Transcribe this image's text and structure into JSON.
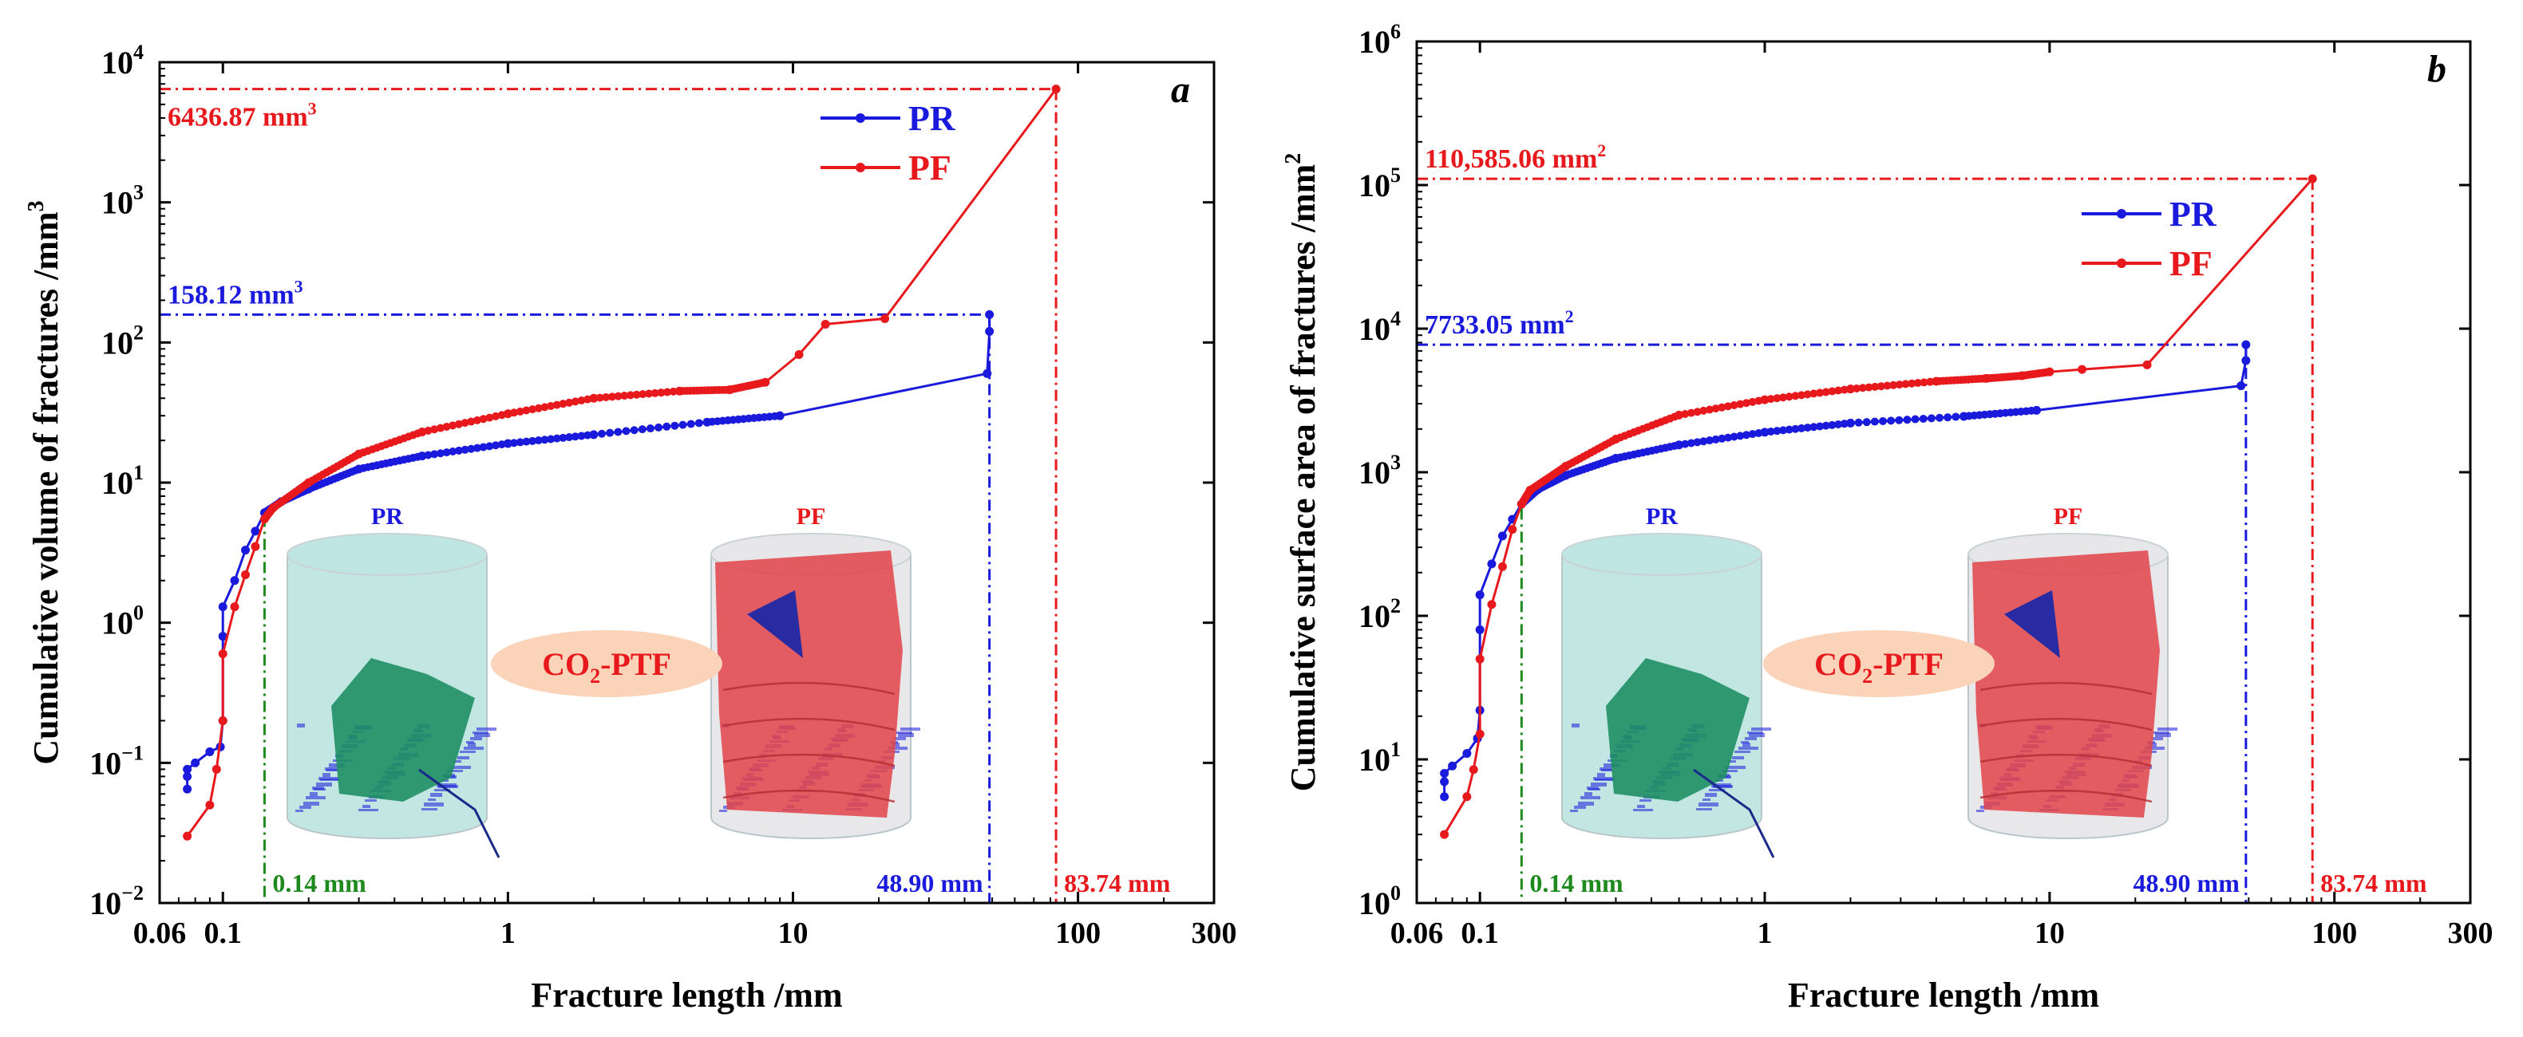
{
  "colors": {
    "pr": "#1a1adc",
    "pf": "#e8191c",
    "green": "#1e8a1e",
    "axis": "#000000",
    "callout": "#fbd3b8",
    "cyl_pr": "#bfe6e2",
    "pr_fracture": "#1f8f64",
    "pf_fracture": "#e0484d",
    "cyl_pf": "#e7e7ea"
  },
  "chart_data": [
    {
      "panel": "a",
      "type": "line",
      "xscale": "log",
      "yscale": "log",
      "xlim": [
        0.06,
        300
      ],
      "ylim": [
        0.01,
        10000
      ],
      "xticks": [
        0.06,
        0.1,
        1,
        10,
        100,
        300
      ],
      "xtick_labels": [
        "0.06",
        "0.1",
        "1",
        "10",
        "100",
        "300"
      ],
      "yticks": [
        0.01,
        0.1,
        1,
        10,
        100,
        1000,
        10000
      ],
      "ytick_mant": [
        "10",
        "10",
        "10",
        "10",
        "10",
        "10",
        "10"
      ],
      "ytick_exp": [
        "−2",
        "−1",
        "0",
        "1",
        "2",
        "3",
        "4"
      ],
      "xlabel": "Fracture length /mm",
      "ylabel_main": "Cumulative volume of fractures /mm",
      "ylabel_sup": "3",
      "panel_label": "a",
      "legend": [
        "PR",
        "PF"
      ],
      "series": [
        {
          "name": "PR",
          "x": [
            0.075,
            0.075,
            0.075,
            0.08,
            0.09,
            0.098,
            0.1,
            0.1,
            0.1,
            0.11,
            0.12,
            0.13,
            0.14,
            0.16,
            0.2,
            0.3,
            0.5,
            1,
            2,
            5,
            9,
            48,
            48.9,
            48.9
          ],
          "y": [
            0.065,
            0.08,
            0.09,
            0.1,
            0.12,
            0.13,
            0.2,
            0.8,
            1.3,
            2,
            3.3,
            4.5,
            6.1,
            7.3,
            9,
            12.5,
            15.5,
            19,
            22,
            27,
            30,
            60,
            120,
            158.12
          ]
        },
        {
          "name": "PF",
          "x": [
            0.075,
            0.09,
            0.095,
            0.1,
            0.1,
            0.11,
            0.12,
            0.13,
            0.14,
            0.15,
            0.2,
            0.3,
            0.5,
            1,
            2,
            4,
            6,
            8,
            10.5,
            13,
            21,
            83.74
          ],
          "y": [
            0.03,
            0.05,
            0.09,
            0.2,
            0.6,
            1.3,
            2.2,
            3.5,
            5.5,
            6.6,
            10,
            16,
            23,
            31,
            40,
            45,
            46,
            52,
            82,
            135,
            148,
            6436.87
          ]
        }
      ],
      "annotations": {
        "pf_max_label": "6436.87 mm",
        "pf_max_sup": "3",
        "pf_max_value": 6436.87,
        "pr_max_label": "158.12 mm",
        "pr_max_sup": "3",
        "pr_max_value": 158.12,
        "x1_label": "0.14 mm",
        "x1_value": 0.14,
        "x2_label": "48.90 mm",
        "x2_value": 48.9,
        "x3_label": "83.74 mm",
        "x3_value": 83.74,
        "callout": "CO",
        "callout_sub": "2",
        "callout_rest": "-PTF",
        "img_pr": "PR",
        "img_pf": "PF"
      }
    },
    {
      "panel": "b",
      "type": "line",
      "xscale": "log",
      "yscale": "log",
      "xlim": [
        0.06,
        300
      ],
      "ylim": [
        1,
        1000000
      ],
      "xticks": [
        0.06,
        0.1,
        1,
        10,
        100,
        300
      ],
      "xtick_labels": [
        "0.06",
        "0.1",
        "1",
        "10",
        "100",
        "300"
      ],
      "yticks": [
        1,
        10,
        100,
        1000,
        10000,
        100000,
        1000000
      ],
      "ytick_mant": [
        "10",
        "10",
        "10",
        "10",
        "10",
        "10",
        "10"
      ],
      "ytick_exp": [
        "0",
        "1",
        "2",
        "3",
        "4",
        "5",
        "6"
      ],
      "xlabel": "Fracture length /mm",
      "ylabel_main": "Cumulative surface area of fractures /mm",
      "ylabel_sup": "2",
      "panel_label": "b",
      "legend": [
        "PR",
        "PF"
      ],
      "series": [
        {
          "name": "PR",
          "x": [
            0.075,
            0.075,
            0.075,
            0.08,
            0.09,
            0.098,
            0.1,
            0.1,
            0.1,
            0.11,
            0.12,
            0.13,
            0.14,
            0.16,
            0.2,
            0.3,
            0.5,
            1,
            2,
            5,
            9,
            47,
            48.9,
            48.9
          ],
          "y": [
            5.5,
            7,
            8,
            9,
            11,
            14,
            22,
            80,
            140,
            230,
            360,
            470,
            600,
            760,
            950,
            1250,
            1550,
            1900,
            2200,
            2450,
            2700,
            4000,
            6000,
            7733.05
          ]
        },
        {
          "name": "PF",
          "x": [
            0.075,
            0.09,
            0.095,
            0.1,
            0.1,
            0.11,
            0.12,
            0.13,
            0.14,
            0.15,
            0.2,
            0.3,
            0.5,
            1,
            2,
            4,
            6,
            8,
            10,
            13,
            22,
            83.74
          ],
          "y": [
            3,
            5.5,
            8.5,
            15,
            50,
            120,
            220,
            400,
            600,
            750,
            1100,
            1700,
            2500,
            3200,
            3800,
            4300,
            4500,
            4700,
            5000,
            5200,
            5600,
            110585.06
          ]
        }
      ],
      "annotations": {
        "pf_max_label": "110,585.06 mm",
        "pf_max_sup": "2",
        "pf_max_value": 110585.06,
        "pr_max_label": "7733.05 mm",
        "pr_max_sup": "2",
        "pr_max_value": 7733.05,
        "x1_label": "0.14 mm",
        "x1_value": 0.14,
        "x2_label": "48.90 mm",
        "x2_value": 48.9,
        "x3_label": "83.74 mm",
        "x3_value": 83.74,
        "callout": "CO",
        "callout_sub": "2",
        "callout_rest": "-PTF",
        "img_pr": "PR",
        "img_pf": "PF"
      }
    }
  ]
}
